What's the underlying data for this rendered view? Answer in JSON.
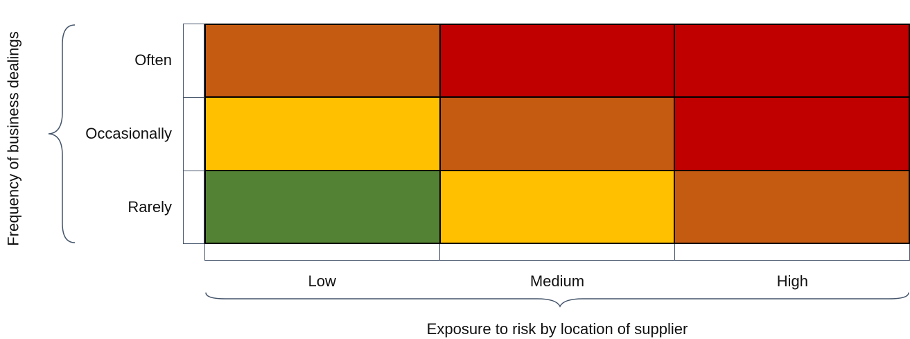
{
  "y_axis_title": "Frequency of business dealings",
  "x_axis_title": "Exposure to risk by location of supplier",
  "rows": [
    "Often",
    "Occasionally",
    "Rarely"
  ],
  "columns": [
    "Low",
    "Medium",
    "High"
  ],
  "palette": {
    "green": "#548235",
    "yellow": "#ffc000",
    "orange": "#c55a11",
    "red": "#c00000"
  },
  "cells": [
    [
      "orange",
      "red",
      "red"
    ],
    [
      "yellow",
      "orange",
      "red"
    ],
    [
      "green",
      "yellow",
      "orange"
    ]
  ]
}
